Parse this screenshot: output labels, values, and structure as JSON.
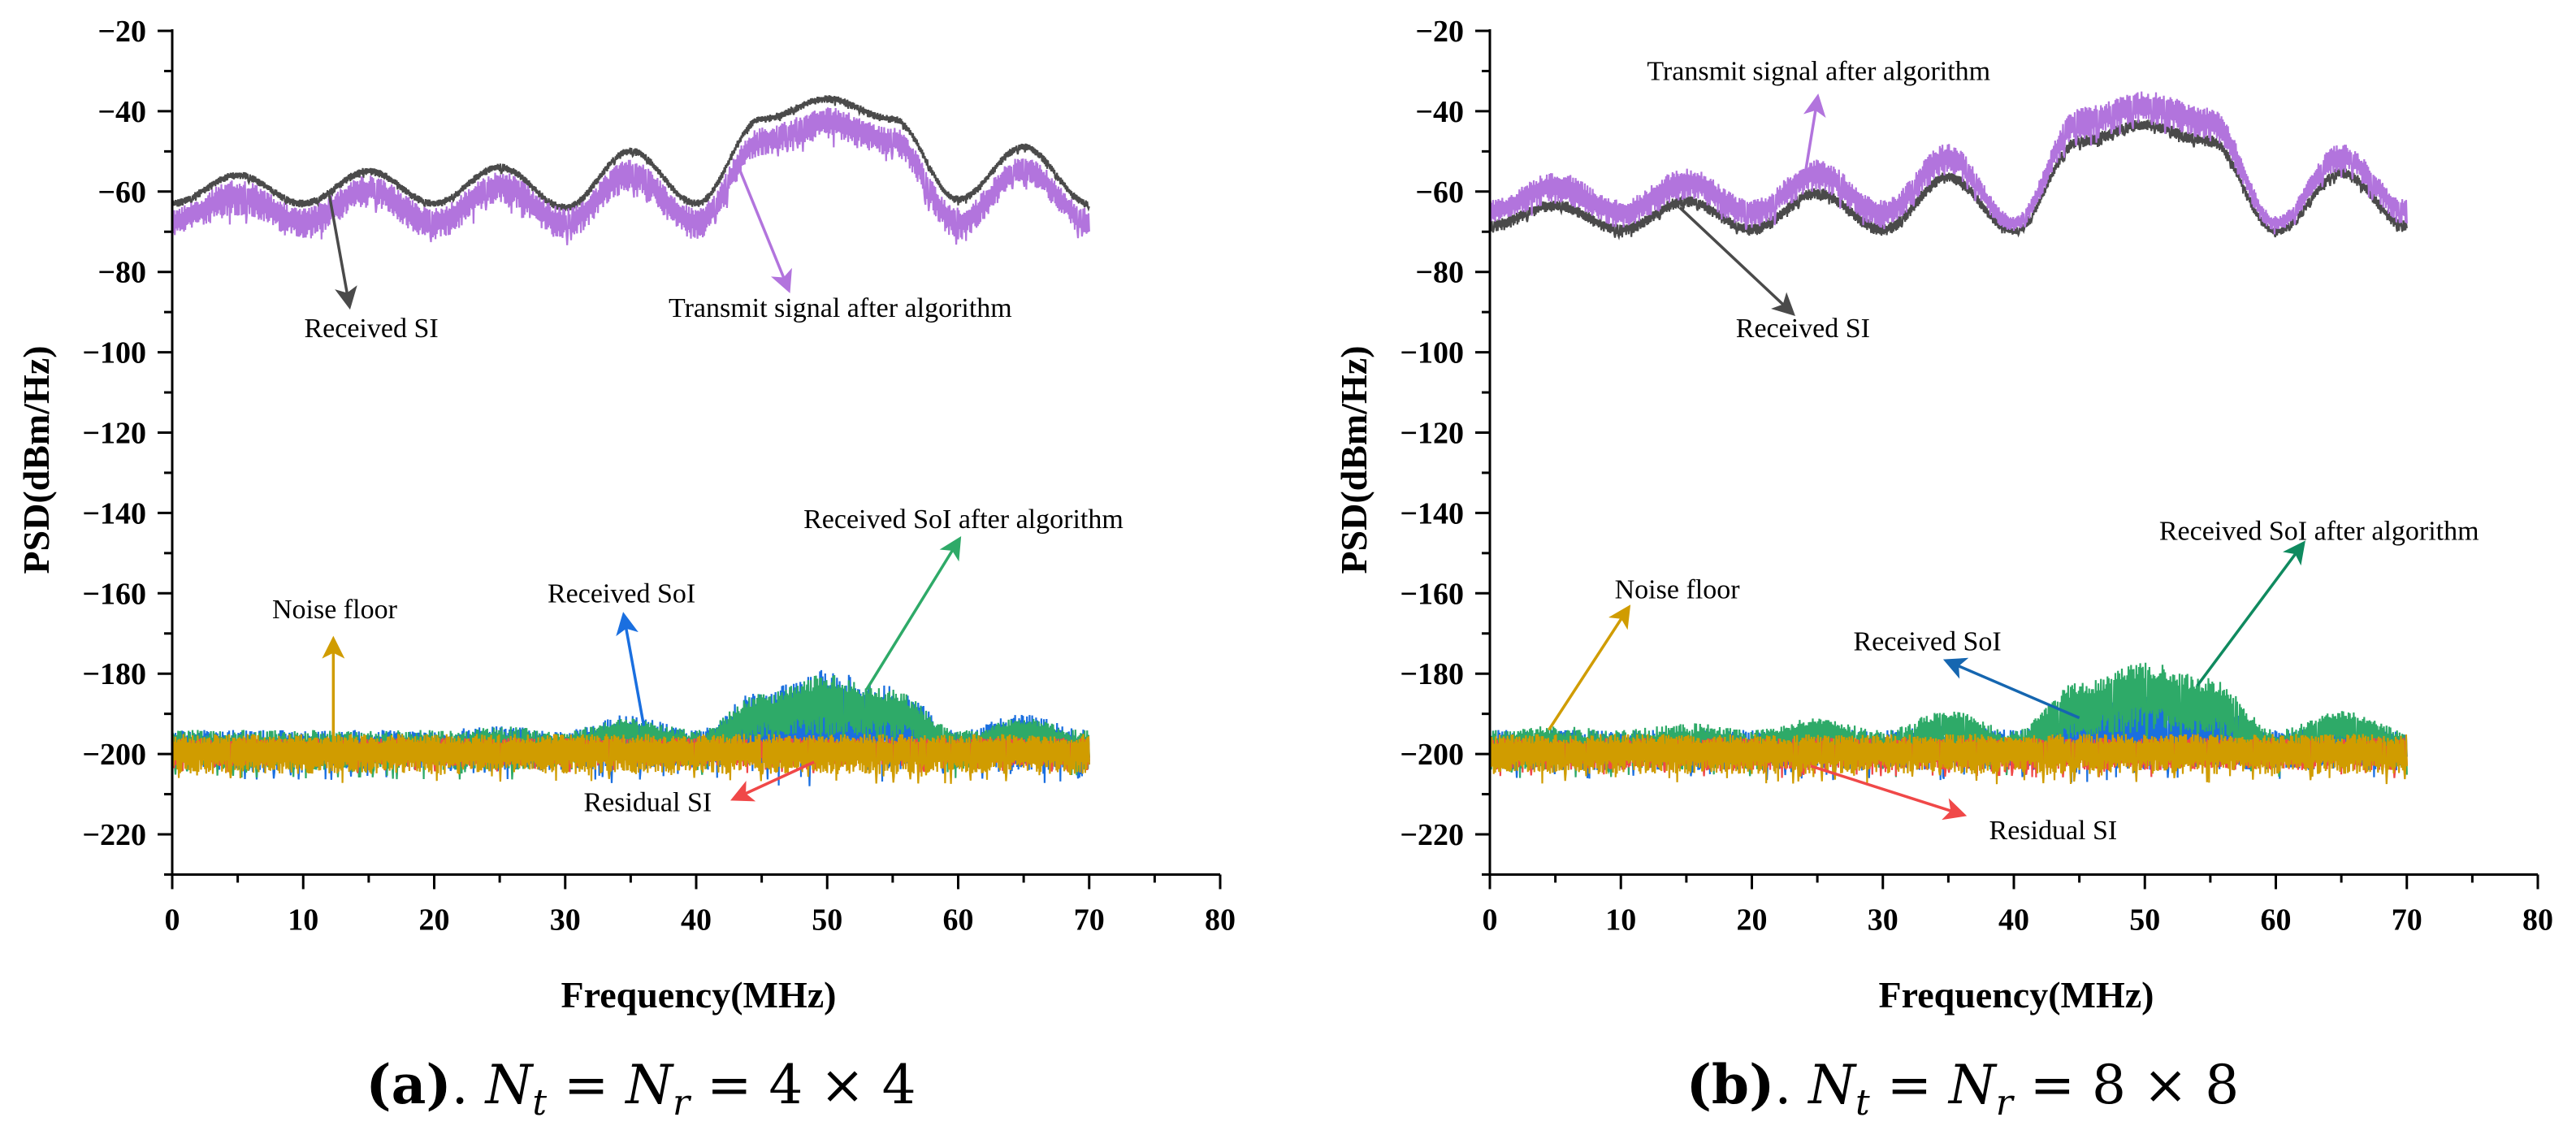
{
  "chart_data": [
    {
      "type": "line",
      "panel": "a",
      "caption": {
        "label": "(a)",
        "lhs": "N",
        "lhs_sub": "t",
        "mid": "N",
        "mid_sub": "r",
        "rhs": "4 × 4"
      },
      "xlabel": "Frequency(MHz)",
      "ylabel": "PSD(dBm/Hz)",
      "xlim": [
        0,
        80
      ],
      "ylim": [
        -230,
        -20
      ],
      "xticks": [
        "0",
        "10",
        "20",
        "30",
        "40",
        "50",
        "60",
        "70",
        "80"
      ],
      "yticks": [
        "−20",
        "−40",
        "−60",
        "−80",
        "−100",
        "−120",
        "−140",
        "−160",
        "−180",
        "−200",
        "−220"
      ],
      "x_anchors": [
        0,
        5,
        10,
        15,
        20,
        25,
        30,
        35,
        40,
        45,
        50,
        55,
        60,
        65,
        70
      ],
      "series": [
        {
          "name": "Received SI",
          "color": "#4a4a4a",
          "top": [
            -62,
            -55,
            -62,
            -54,
            -62,
            -53,
            -63,
            -49,
            -62,
            -41,
            -36,
            -41,
            -61,
            -48,
            -62
          ],
          "bottom": [
            -64,
            -57,
            -64,
            -56,
            -64,
            -55,
            -65,
            -51,
            -64,
            -43,
            -38,
            -43,
            -63,
            -50,
            -64
          ]
        },
        {
          "name": "Transmit signal after algorithm",
          "color": "#b274dd",
          "top": [
            -64,
            -57,
            -64,
            -56,
            -64,
            -55,
            -64,
            -52,
            -64,
            -44,
            -39,
            -44,
            -64,
            -51,
            -64
          ],
          "bottom": [
            -71,
            -66,
            -72,
            -64,
            -72,
            -63,
            -72,
            -60,
            -72,
            -51,
            -47,
            -51,
            -72,
            -58,
            -71
          ]
        },
        {
          "name": "Received SoI",
          "color": "#1a6fe0",
          "top": [
            -194,
            -194,
            -194,
            -194,
            -194,
            -193,
            -194,
            -190,
            -194,
            -184,
            -179,
            -183,
            -194,
            -190,
            -194
          ],
          "bottom": [
            -204,
            -204,
            -204,
            -204,
            -204,
            -204,
            -204,
            -204,
            -204,
            -204,
            -204,
            -204,
            -204,
            -204,
            -204
          ]
        },
        {
          "name": "Received SoI after algorithm",
          "color": "#2eaa68",
          "top": [
            -194,
            -194,
            -194,
            -194,
            -194,
            -193,
            -194,
            -191,
            -194,
            -185,
            -180,
            -184,
            -194,
            -191,
            -194
          ],
          "bottom": [
            -204,
            -204,
            -204,
            -204,
            -204,
            -204,
            -204,
            -198,
            -204,
            -196,
            -196,
            -196,
            -204,
            -198,
            -204
          ]
        },
        {
          "name": "Residual SI",
          "color": "#f04848",
          "top": [
            -196,
            -196,
            -196,
            -196,
            -196,
            -196,
            -196,
            -196,
            -196,
            -196,
            -196,
            -196,
            -196,
            -196,
            -196
          ],
          "bottom": [
            -203,
            -203,
            -203,
            -203,
            -203,
            -203,
            -203,
            -203,
            -203,
            -203,
            -203,
            -203,
            -203,
            -203,
            -203
          ]
        },
        {
          "name": "Noise floor",
          "color": "#d09c00",
          "top": [
            -195,
            -195,
            -195,
            -195,
            -195,
            -195,
            -195,
            -195,
            -195,
            -195,
            -195,
            -195,
            -195,
            -195,
            -195
          ],
          "bottom": [
            -205,
            -205,
            -205,
            -205,
            -205,
            -205,
            -205,
            -205,
            -205,
            -205,
            -205,
            -205,
            -205,
            -205,
            -205
          ]
        }
      ],
      "annotations": [
        {
          "text": "Received SI",
          "color": "#4a4a4a",
          "text_at": [
            15.2,
            -94
          ],
          "arrow_from": [
            12,
            -61
          ],
          "arrow_to": [
            13.5,
            -88
          ]
        },
        {
          "text": "Transmit signal after algorithm",
          "color": "#b274dd",
          "text_at": [
            51,
            -89
          ],
          "arrow_from": [
            43,
            -52
          ],
          "arrow_to": [
            47,
            -84
          ]
        },
        {
          "text": "Received SoI after algorithm",
          "color": "#2eaa68",
          "text_at": [
            60.4,
            -141.5
          ],
          "arrow_from": [
            53,
            -184
          ],
          "arrow_to": [
            60,
            -147
          ]
        },
        {
          "text": "Received SoI",
          "color": "#1a6fe0",
          "text_at": [
            34.3,
            -160
          ],
          "arrow_from": [
            36,
            -193
          ],
          "arrow_to": [
            34.5,
            -166
          ]
        },
        {
          "text": "Noise floor",
          "color": "#d09c00",
          "text_at": [
            12.4,
            -164
          ],
          "arrow_from": [
            12.3,
            -198
          ],
          "arrow_to": [
            12.3,
            -172
          ]
        },
        {
          "text": "Residual SI",
          "color": "#f04848",
          "text_at": [
            36.3,
            -212
          ],
          "arrow_from": [
            49,
            -202
          ],
          "arrow_to": [
            43,
            -211
          ]
        }
      ]
    },
    {
      "type": "line",
      "panel": "b",
      "caption": {
        "label": "(b)",
        "lhs": "N",
        "lhs_sub": "t",
        "mid": "N",
        "mid_sub": "r",
        "rhs": "8 × 8"
      },
      "xlabel": "Frequency(MHz)",
      "ylabel": "PSD(dBm/Hz)",
      "xlim": [
        0,
        80
      ],
      "ylim": [
        -230,
        -20
      ],
      "xticks": [
        "0",
        "10",
        "20",
        "30",
        "40",
        "50",
        "60",
        "70",
        "80"
      ],
      "yticks": [
        "−20",
        "−40",
        "−60",
        "−80",
        "−100",
        "−120",
        "−140",
        "−160",
        "−180",
        "−200",
        "−220"
      ],
      "x_anchors": [
        0,
        5,
        10,
        15,
        20,
        25,
        30,
        35,
        40,
        45,
        50,
        55,
        60,
        65,
        70
      ],
      "series": [
        {
          "name": "Received SI",
          "color": "#4a4a4a",
          "top": [
            -67,
            -62,
            -68,
            -61,
            -68,
            -59,
            -68,
            -55,
            -69,
            -46,
            -42,
            -46,
            -69,
            -54,
            -67
          ],
          "bottom": [
            -70,
            -65,
            -71,
            -64,
            -71,
            -62,
            -71,
            -58,
            -71,
            -49,
            -45,
            -49,
            -71,
            -57,
            -70
          ]
        },
        {
          "name": "Transmit signal after algorithm",
          "color": "#b274dd",
          "top": [
            -62,
            -55,
            -62,
            -54,
            -62,
            -52,
            -62,
            -48,
            -66,
            -39,
            -35,
            -39,
            -66,
            -48,
            -62
          ],
          "bottom": [
            -68,
            -63,
            -69,
            -62,
            -69,
            -60,
            -69,
            -56,
            -70,
            -47,
            -43,
            -47,
            -70,
            -55,
            -68
          ]
        },
        {
          "name": "Received SoI",
          "color": "#1a6fe0",
          "top": [
            -194,
            -194,
            -194,
            -194,
            -194,
            -194,
            -194,
            -193,
            -194,
            -188,
            -184,
            -188,
            -194,
            -193,
            -194
          ],
          "bottom": [
            -204,
            -204,
            -204,
            -204,
            -204,
            -204,
            -204,
            -204,
            -204,
            -204,
            -204,
            -204,
            -204,
            -204,
            -204
          ]
        },
        {
          "name": "Received SoI after algorithm",
          "color": "#2eaa68",
          "top": [
            -194,
            -193,
            -194,
            -192,
            -194,
            -191,
            -194,
            -189,
            -194,
            -182,
            -177,
            -181,
            -194,
            -189,
            -194
          ],
          "bottom": [
            -204,
            -204,
            -204,
            -204,
            -204,
            -198,
            -204,
            -198,
            -204,
            -196,
            -194,
            -196,
            -204,
            -198,
            -204
          ]
        },
        {
          "name": "Residual SI",
          "color": "#f04848",
          "top": [
            -196,
            -196,
            -196,
            -196,
            -196,
            -196,
            -196,
            -196,
            -196,
            -196,
            -196,
            -196,
            -196,
            -196,
            -196
          ],
          "bottom": [
            -204,
            -204,
            -204,
            -204,
            -204,
            -204,
            -204,
            -204,
            -204,
            -204,
            -204,
            -204,
            -204,
            -204,
            -204
          ]
        },
        {
          "name": "Noise floor",
          "color": "#d09c00",
          "top": [
            -195,
            -195,
            -195,
            -195,
            -195,
            -195,
            -195,
            -195,
            -195,
            -195,
            -195,
            -195,
            -195,
            -195,
            -195
          ],
          "bottom": [
            -205,
            -205,
            -205,
            -205,
            -205,
            -205,
            -205,
            -205,
            -205,
            -205,
            -205,
            -205,
            -205,
            -205,
            -205
          ]
        }
      ],
      "annotations": [
        {
          "text": "Transmit signal after algorithm",
          "color": "#b274dd",
          "text_at": [
            25.1,
            -30
          ],
          "arrow_from": [
            24,
            -57
          ],
          "arrow_to": [
            25,
            -37
          ]
        },
        {
          "text": "Received SI",
          "color": "#4a4a4a",
          "text_at": [
            23.9,
            -94
          ],
          "arrow_from": [
            14.5,
            -64
          ],
          "arrow_to": [
            23,
            -90
          ]
        },
        {
          "text": "Received SoI after algorithm",
          "color": "#0f8a5f",
          "text_at": [
            63.3,
            -144.5
          ],
          "arrow_from": [
            54,
            -183
          ],
          "arrow_to": [
            62,
            -148
          ]
        },
        {
          "text": "Received SoI",
          "color": "#1566b0",
          "text_at": [
            33.4,
            -172
          ],
          "arrow_from": [
            45,
            -191
          ],
          "arrow_to": [
            35,
            -177
          ]
        },
        {
          "text": "Noise floor",
          "color": "#d09c00",
          "text_at": [
            14.3,
            -159
          ],
          "arrow_from": [
            4.5,
            -194
          ],
          "arrow_to": [
            10.5,
            -164
          ]
        },
        {
          "text": "Residual SI",
          "color": "#f04848",
          "text_at": [
            43,
            -219
          ],
          "arrow_from": [
            24.5,
            -203
          ],
          "arrow_to": [
            36,
            -215
          ]
        }
      ]
    }
  ]
}
